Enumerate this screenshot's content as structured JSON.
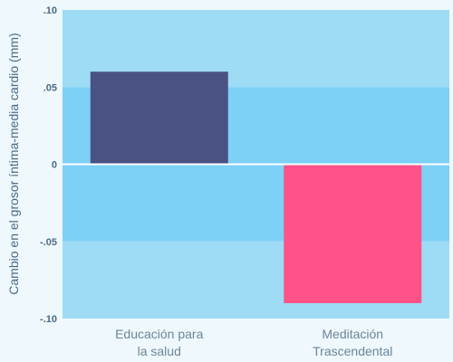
{
  "colors": {
    "page_background": "#eef8fd",
    "band_light": "#9ddcf4",
    "band_dark": "#7dd0f6",
    "zero_line": "#ffffff",
    "tick_text": "#4c6a84",
    "category_text": "#6d8598"
  },
  "chart_data": {
    "type": "bar",
    "categories": [
      "Educación para la salud",
      "Meditación Trascendental"
    ],
    "category_lines": [
      [
        "Educación para",
        "la salud"
      ],
      [
        "Meditación",
        "Trascendental"
      ]
    ],
    "values": [
      0.06,
      -0.09
    ],
    "bar_colors": [
      "#4a5284",
      "#ff5288"
    ],
    "title": "",
    "xlabel": "",
    "ylabel": "Cambio en el grosor íntima-media cardio (mm)",
    "ylim": [
      -0.1,
      0.1
    ],
    "yticks": [
      0.1,
      0.05,
      0,
      -0.05,
      -0.1
    ],
    "ytick_labels": [
      ".10",
      ".05",
      "0",
      "-.05",
      "-.10"
    ],
    "grid": "alternating horizontal bands",
    "legend": "none"
  }
}
